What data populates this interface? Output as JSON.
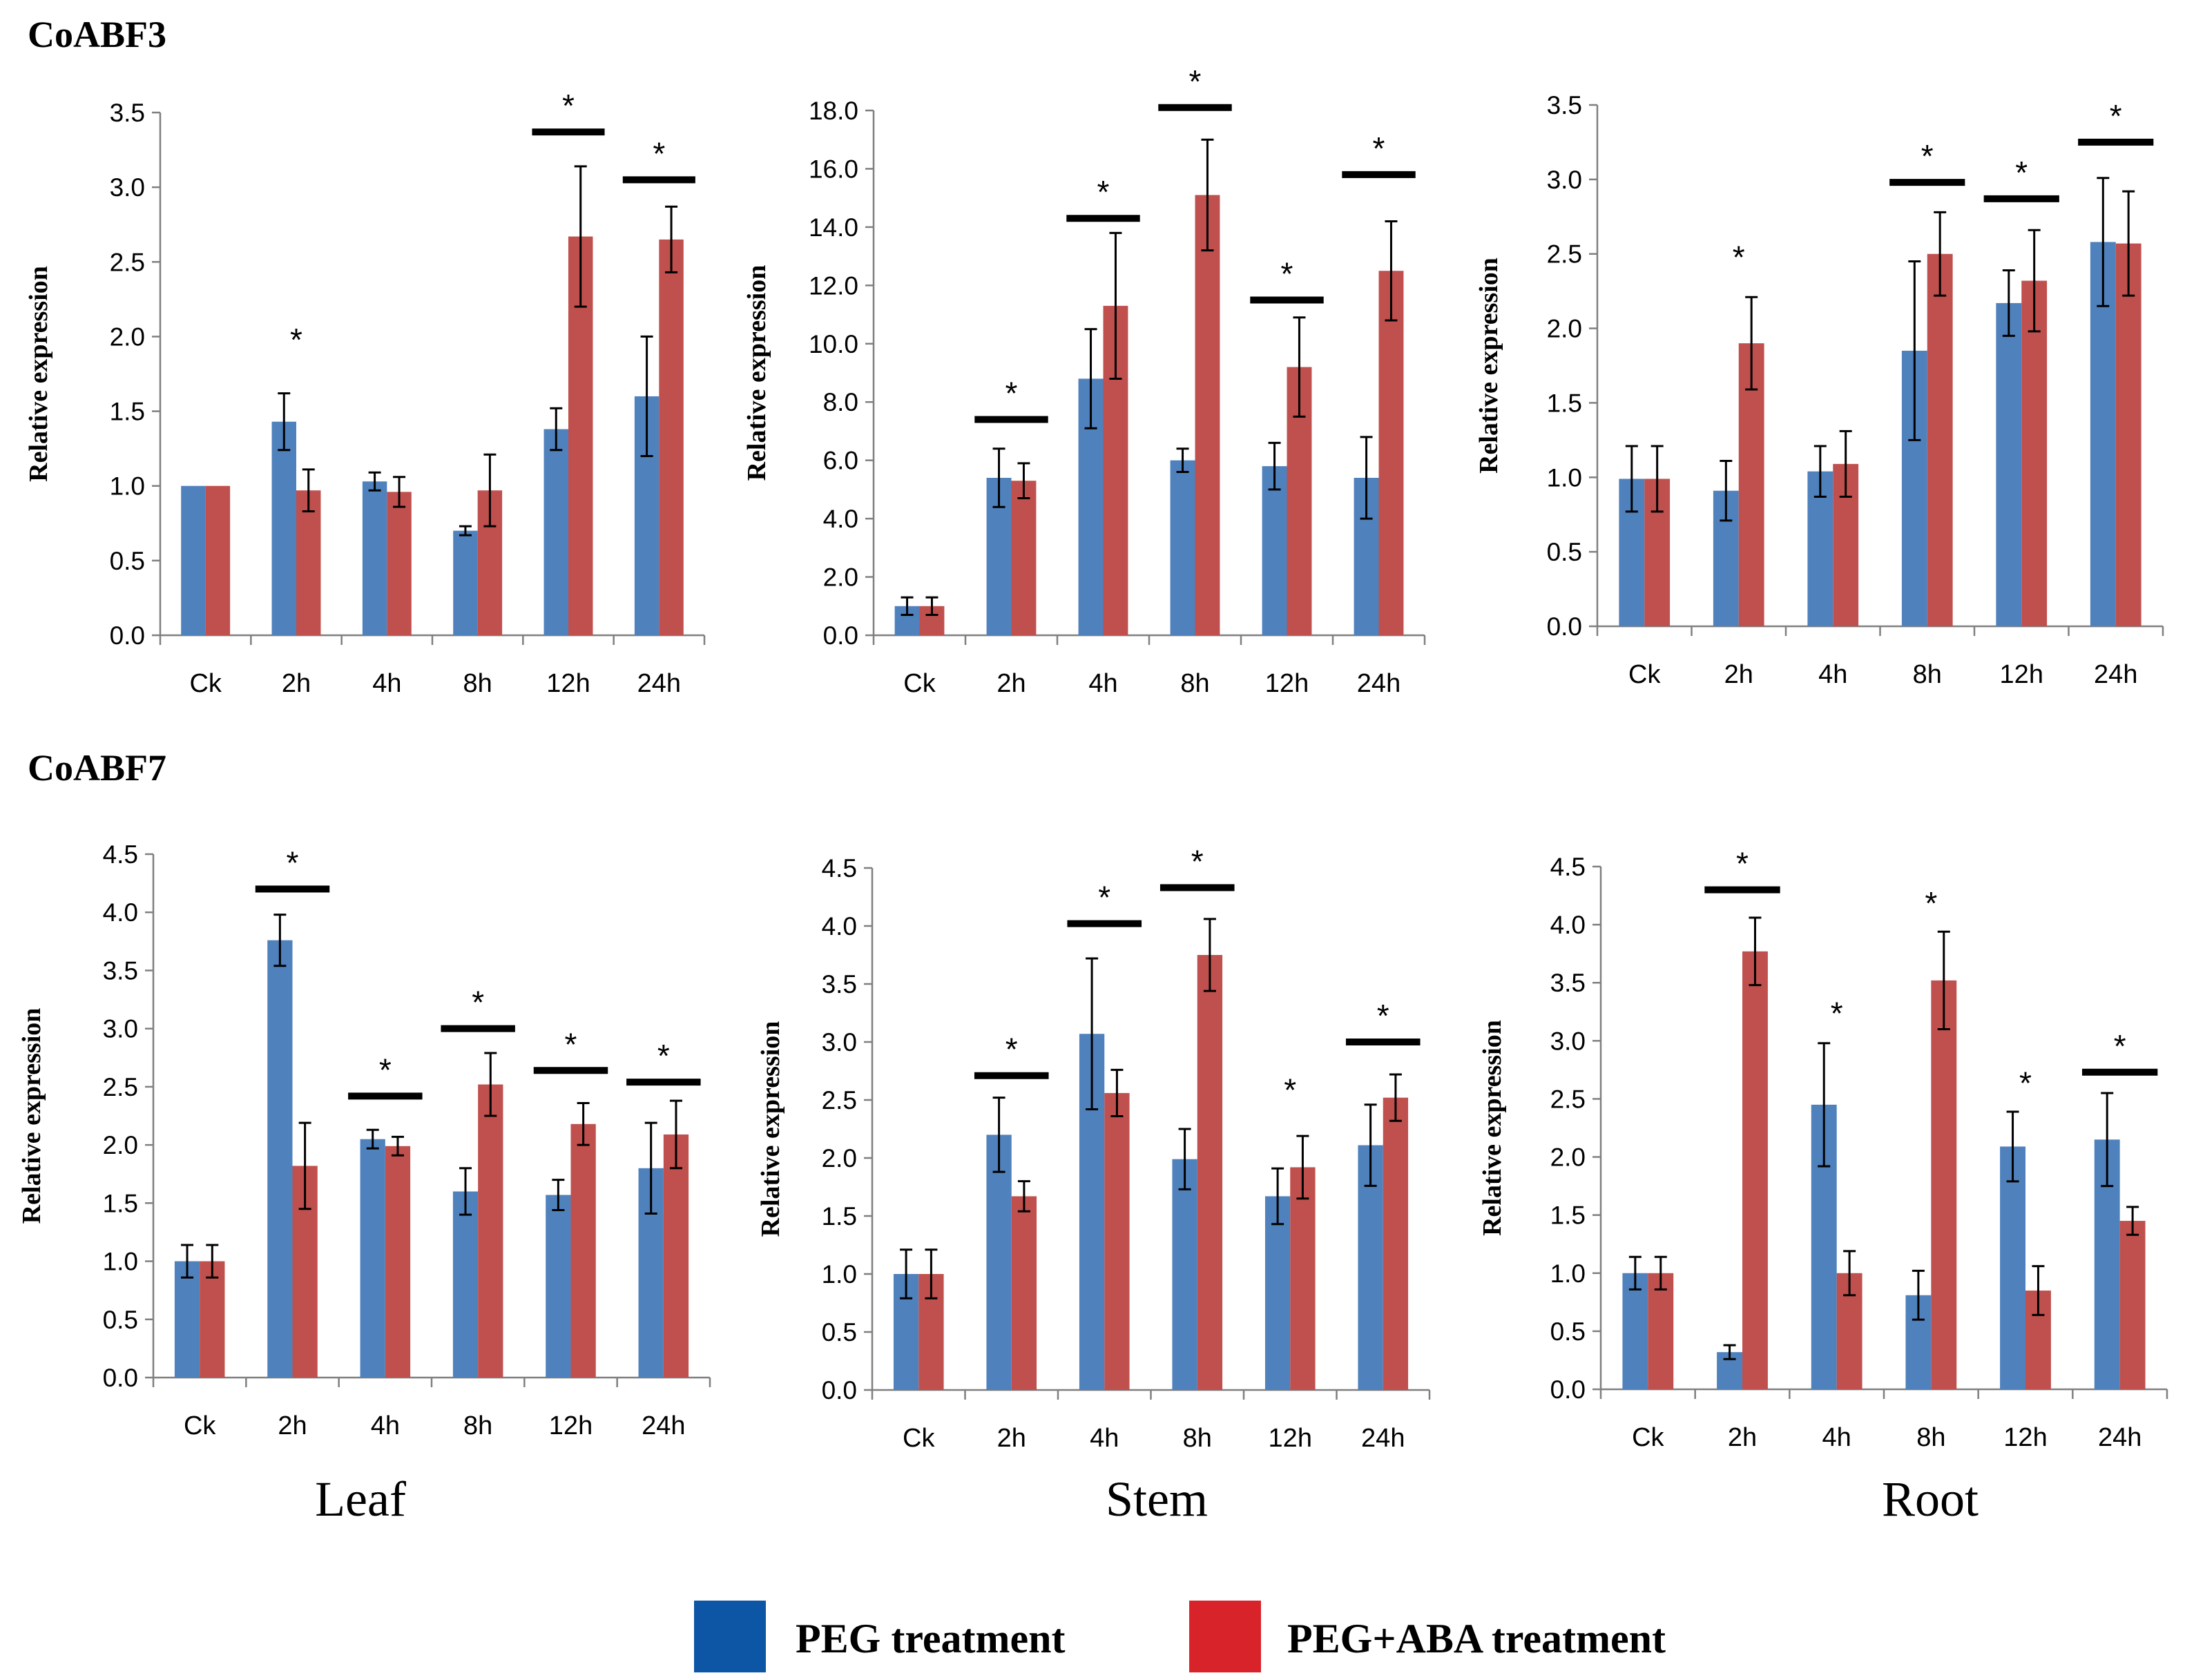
{
  "rows": [
    {
      "gene": "CoABF3"
    },
    {
      "gene": "CoABF7"
    }
  ],
  "tissues": [
    "Leaf",
    "Stem",
    "Root"
  ],
  "legend": {
    "items": [
      {
        "label": "PEG treatment",
        "color": "#4f81bd"
      },
      {
        "label": "PEG+ABA treatment",
        "color": "#c0504d"
      }
    ],
    "swatch_colors": [
      "#0d56a6",
      "#d9232b"
    ]
  },
  "colors": {
    "peg": "#4f81bd",
    "aba": "#c0504d",
    "axis": "#7f7f7f",
    "sigbar": "#000000"
  },
  "chart_data": [
    {
      "type": "bar",
      "gene": "CoABF3",
      "tissue": "Leaf",
      "categories": [
        "Ck",
        "2h",
        "4h",
        "8h",
        "12h",
        "24h"
      ],
      "ylabel": "Relative expression",
      "ylim": [
        0,
        3.5
      ],
      "ystep": 0.5,
      "ydecimals": 1,
      "series": [
        {
          "name": "PEG treatment",
          "values": [
            1.0,
            1.43,
            1.03,
            0.7,
            1.38,
            1.6
          ],
          "errors": [
            0,
            0.19,
            0.06,
            0.03,
            0.14,
            0.4
          ]
        },
        {
          "name": "PEG+ABA treatment",
          "values": [
            1.0,
            0.97,
            0.96,
            0.97,
            2.67,
            2.65
          ],
          "errors": [
            0,
            0.14,
            0.1,
            0.24,
            0.47,
            0.22
          ]
        }
      ],
      "significance": [
        {
          "category": "2h",
          "label": "*",
          "bar": false,
          "y": 1.95
        },
        {
          "category": "12h",
          "label": "*",
          "bar": true,
          "y": 3.37
        },
        {
          "category": "24h",
          "label": "*",
          "bar": true,
          "y": 3.05
        }
      ]
    },
    {
      "type": "bar",
      "gene": "CoABF3",
      "tissue": "Stem",
      "categories": [
        "Ck",
        "2h",
        "4h",
        "8h",
        "12h",
        "24h"
      ],
      "ylabel": "Relative expression",
      "ylim": [
        0,
        18
      ],
      "ystep": 2,
      "ydecimals": 1,
      "series": [
        {
          "name": "PEG treatment",
          "values": [
            1.0,
            5.4,
            8.8,
            6.0,
            5.8,
            5.4
          ],
          "errors": [
            0.3,
            1.0,
            1.7,
            0.4,
            0.8,
            1.4
          ]
        },
        {
          "name": "PEG+ABA treatment",
          "values": [
            1.0,
            5.3,
            11.3,
            15.1,
            9.2,
            12.5
          ],
          "errors": [
            0.3,
            0.6,
            2.5,
            1.9,
            1.7,
            1.7
          ]
        }
      ],
      "significance": [
        {
          "category": "2h",
          "label": "*",
          "bar": true,
          "y": 7.4
        },
        {
          "category": "4h",
          "label": "*",
          "bar": true,
          "y": 14.3
        },
        {
          "category": "8h",
          "label": "*",
          "bar": true,
          "y": 18.1
        },
        {
          "category": "12h",
          "label": "*",
          "bar": true,
          "y": 11.5
        },
        {
          "category": "24h",
          "label": "*",
          "bar": true,
          "y": 15.8
        }
      ]
    },
    {
      "type": "bar",
      "gene": "CoABF3",
      "tissue": "Root",
      "categories": [
        "Ck",
        "2h",
        "4h",
        "8h",
        "12h",
        "24h"
      ],
      "ylabel": "Relative expression",
      "ylim": [
        0,
        3.5
      ],
      "ystep": 0.5,
      "ydecimals": 1,
      "series": [
        {
          "name": "PEG treatment",
          "values": [
            0.99,
            0.91,
            1.04,
            1.85,
            2.17,
            2.58
          ],
          "errors": [
            0.22,
            0.2,
            0.17,
            0.6,
            0.22,
            0.43
          ]
        },
        {
          "name": "PEG+ABA treatment",
          "values": [
            0.99,
            1.9,
            1.09,
            2.5,
            2.32,
            2.57
          ],
          "errors": [
            0.22,
            0.31,
            0.22,
            0.28,
            0.34,
            0.35
          ]
        }
      ],
      "significance": [
        {
          "category": "2h",
          "label": "*",
          "bar": false,
          "y": 2.45
        },
        {
          "category": "8h",
          "label": "*",
          "bar": true,
          "y": 2.98
        },
        {
          "category": "12h",
          "label": "*",
          "bar": true,
          "y": 2.87
        },
        {
          "category": "24h",
          "label": "*",
          "bar": true,
          "y": 3.25
        }
      ]
    },
    {
      "type": "bar",
      "gene": "CoABF7",
      "tissue": "Leaf",
      "categories": [
        "Ck",
        "2h",
        "4h",
        "8h",
        "12h",
        "24h"
      ],
      "ylabel": "Relative expression",
      "ylim": [
        0,
        4.5
      ],
      "ystep": 0.5,
      "ydecimals": 1,
      "series": [
        {
          "name": "PEG treatment",
          "values": [
            1.0,
            3.76,
            2.05,
            1.6,
            1.57,
            1.8
          ],
          "errors": [
            0.14,
            0.22,
            0.08,
            0.2,
            0.13,
            0.39
          ]
        },
        {
          "name": "PEG+ABA treatment",
          "values": [
            1.0,
            1.82,
            1.99,
            2.52,
            2.18,
            2.09
          ],
          "errors": [
            0.14,
            0.37,
            0.08,
            0.27,
            0.18,
            0.29
          ]
        }
      ],
      "significance": [
        {
          "category": "2h",
          "label": "*",
          "bar": true,
          "y": 4.2
        },
        {
          "category": "4h",
          "label": "*",
          "bar": true,
          "y": 2.42
        },
        {
          "category": "8h",
          "label": "*",
          "bar": true,
          "y": 3.0
        },
        {
          "category": "12h",
          "label": "*",
          "bar": true,
          "y": 2.64
        },
        {
          "category": "24h",
          "label": "*",
          "bar": true,
          "y": 2.54
        }
      ]
    },
    {
      "type": "bar",
      "gene": "CoABF7",
      "tissue": "Stem",
      "categories": [
        "Ck",
        "2h",
        "4h",
        "8h",
        "12h",
        "24h"
      ],
      "ylabel": "Relative expression",
      "ylim": [
        0,
        4.5
      ],
      "ystep": 0.5,
      "ydecimals": 1,
      "series": [
        {
          "name": "PEG treatment",
          "values": [
            1.0,
            2.2,
            3.07,
            1.99,
            1.67,
            2.11
          ],
          "errors": [
            0.21,
            0.32,
            0.65,
            0.26,
            0.24,
            0.35
          ]
        },
        {
          "name": "PEG+ABA treatment",
          "values": [
            1.0,
            1.67,
            2.56,
            3.75,
            1.92,
            2.52
          ],
          "errors": [
            0.21,
            0.13,
            0.2,
            0.31,
            0.27,
            0.2
          ]
        }
      ],
      "significance": [
        {
          "category": "2h",
          "label": "*",
          "bar": true,
          "y": 2.71
        },
        {
          "category": "4h",
          "label": "*",
          "bar": true,
          "y": 4.02
        },
        {
          "category": "8h",
          "label": "*",
          "bar": true,
          "y": 4.33
        },
        {
          "category": "12h",
          "label": "*",
          "bar": false,
          "y": 2.55
        },
        {
          "category": "24h",
          "label": "*",
          "bar": true,
          "y": 3.0
        }
      ]
    },
    {
      "type": "bar",
      "gene": "CoABF7",
      "tissue": "Root",
      "categories": [
        "Ck",
        "2h",
        "4h",
        "8h",
        "12h",
        "24h"
      ],
      "ylabel": "Relative expression",
      "ylim": [
        0,
        4.5
      ],
      "ystep": 0.5,
      "ydecimals": 1,
      "series": [
        {
          "name": "PEG treatment",
          "values": [
            1.0,
            0.32,
            2.45,
            0.81,
            2.09,
            2.15
          ],
          "errors": [
            0.14,
            0.06,
            0.53,
            0.21,
            0.3,
            0.4
          ]
        },
        {
          "name": "PEG+ABA treatment",
          "values": [
            1.0,
            3.77,
            1.0,
            3.52,
            0.85,
            1.45
          ],
          "errors": [
            0.14,
            0.29,
            0.19,
            0.42,
            0.21,
            0.12
          ]
        }
      ],
      "significance": [
        {
          "category": "2h",
          "label": "*",
          "bar": true,
          "y": 4.3
        },
        {
          "category": "4h",
          "label": "*",
          "bar": false,
          "y": 3.2
        },
        {
          "category": "8h",
          "label": "*",
          "bar": false,
          "y": 4.15
        },
        {
          "category": "12h",
          "label": "*",
          "bar": false,
          "y": 2.6
        },
        {
          "category": "24h",
          "label": "*",
          "bar": true,
          "y": 2.73
        }
      ]
    }
  ]
}
